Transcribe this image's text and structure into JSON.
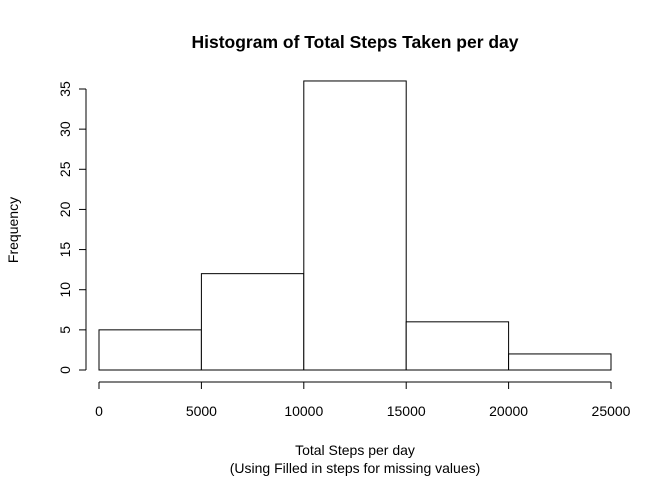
{
  "chart_data": {
    "type": "bar",
    "title": "Histogram of Total Steps Taken per day",
    "xlabel": "Total Steps per day",
    "xlabel_sub": "(Using Filled in steps for missing values)",
    "ylabel": "Frequency",
    "bins": [
      {
        "from": 0,
        "to": 5000,
        "count": 5
      },
      {
        "from": 5000,
        "to": 10000,
        "count": 12
      },
      {
        "from": 10000,
        "to": 15000,
        "count": 36
      },
      {
        "from": 15000,
        "to": 20000,
        "count": 6
      },
      {
        "from": 20000,
        "to": 25000,
        "count": 2
      }
    ],
    "xlim": [
      0,
      25000
    ],
    "ylim": [
      0,
      35
    ],
    "x_ticks": [
      0,
      5000,
      10000,
      15000,
      20000,
      25000
    ],
    "y_ticks": [
      0,
      5,
      10,
      15,
      20,
      25,
      30,
      35
    ],
    "grid": false,
    "bar_fill": "#ffffff",
    "bar_stroke": "#000000"
  }
}
